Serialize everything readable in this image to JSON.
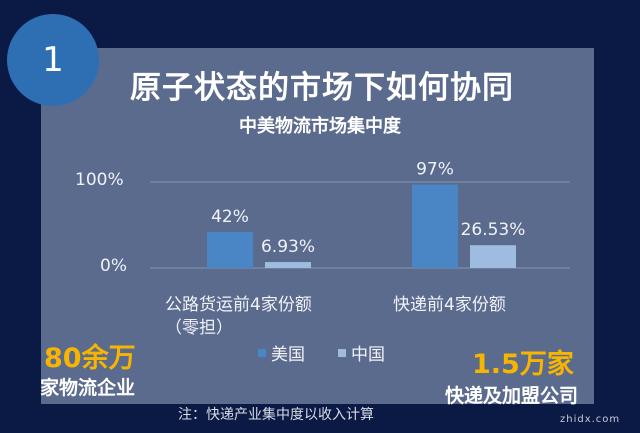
{
  "badge": "1",
  "title": "原子状态的市场下如何协同",
  "chart_data": {
    "type": "bar",
    "title": "中美物流市场集中度",
    "categories": [
      "公路货运前4家份额（零担）",
      "快递前4家份额"
    ],
    "category_lines": [
      [
        "公路货运前4家份额",
        "（零担）"
      ],
      [
        "快递前4家份额"
      ]
    ],
    "series": [
      {
        "name": "美国",
        "values": [
          42,
          97
        ],
        "labels": [
          "42%",
          "97%"
        ],
        "color": "#4a86c5"
      },
      {
        "name": "中国",
        "values": [
          6.93,
          26.53
        ],
        "labels": [
          "6.93%",
          "26.53%"
        ],
        "color": "#9dbce0"
      }
    ],
    "yticks": [
      "0%",
      "100%"
    ],
    "ylim": [
      0,
      100
    ],
    "grid": true,
    "legend": "bottom"
  },
  "left_stat": {
    "value": "80余万",
    "label": "家物流企业"
  },
  "right_stat": {
    "value": "1.5万家",
    "label": "快递及加盟公司"
  },
  "note": "注：快递产业集中度以收入计算",
  "watermark": "zhidx.com"
}
